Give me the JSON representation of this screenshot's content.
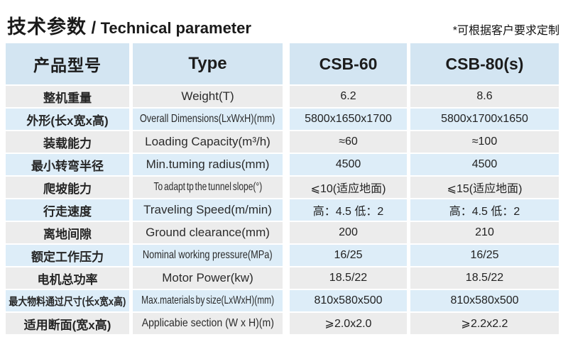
{
  "page": {
    "title_cn": "技术参数",
    "title_sep": "/",
    "title_en": "Technical parameter",
    "note": "*可根据客户要求定制"
  },
  "table": {
    "header": {
      "product_model": "产品型号",
      "type": "Type",
      "model_1": "CSB-60",
      "model_2": "CSB-80(s)"
    },
    "rows": [
      {
        "cn": "整机重量",
        "en": "Weight(T)",
        "v1": "6.2",
        "v2": "8.6"
      },
      {
        "cn": "外形(长x宽x高)",
        "en": "Overall Dimensions(LxWxH)(mm)",
        "v1": "5800x1650x1700",
        "v2": "5800x1700x1650"
      },
      {
        "cn": "装载能力",
        "en": "Loading Capacity(m³/h)",
        "v1": "≈60",
        "v2": "≈100"
      },
      {
        "cn": "最小转弯半径",
        "en": "Min.tuming radius(mm)",
        "v1": "4500",
        "v2": "4500"
      },
      {
        "cn": "爬坡能力",
        "en": "To adapt tp the tunnel slope(°)",
        "v1": "⩽10(适应地面)",
        "v2": "⩽15(适应地面)"
      },
      {
        "cn": "行走速度",
        "en": "Traveling Speed(m/min)",
        "v1": "高：4.5 低：2",
        "v2": "高：4.5 低：2"
      },
      {
        "cn": "离地间隙",
        "en": "Ground clearance(mm)",
        "v1": "200",
        "v2": "210"
      },
      {
        "cn": "额定工作压力",
        "en": "Nominal working pressure(MPa)",
        "v1": "16/25",
        "v2": "16/25"
      },
      {
        "cn": "电机总功率",
        "en": "Motor Power(kw)",
        "v1": "18.5/22",
        "v2": "18.5/22"
      },
      {
        "cn": "最大物料通过尺寸(长x宽x高)",
        "en": "Max.materials by size(LxWxH)(mm)",
        "v1": "810x580x500",
        "v2": "810x580x500"
      },
      {
        "cn": "适用断面(宽x高)",
        "en": "Applicabie section (W x H)(m)",
        "v1": "⩾2.0x2.0",
        "v2": "⩾2.2x2.2"
      }
    ],
    "colors": {
      "header_bg": "#d3e5f2",
      "row_blue": "#ddedf8",
      "row_gray": "#ececec"
    }
  }
}
